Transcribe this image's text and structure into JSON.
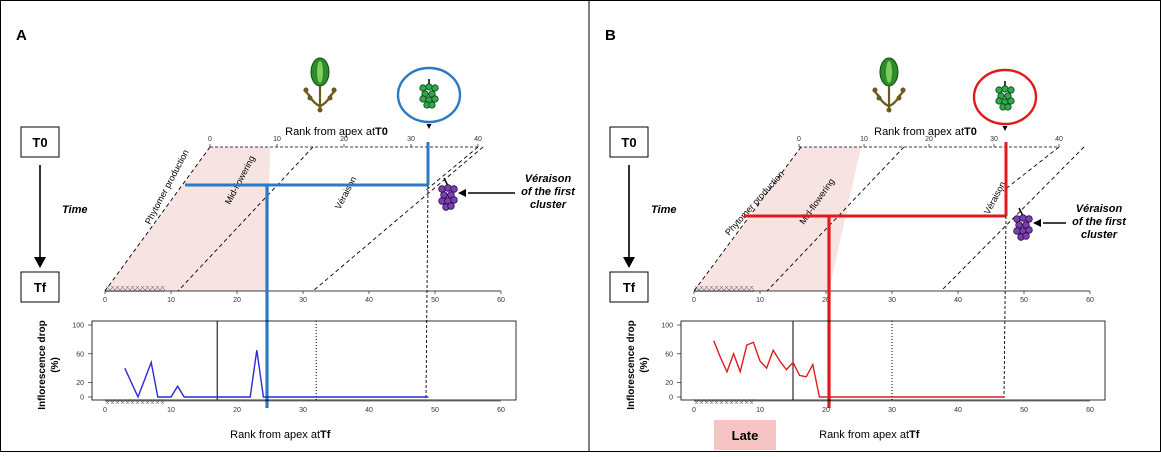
{
  "panels": [
    {
      "label": "A",
      "top_axis_label": "Rank from apex at ",
      "top_axis_label_bold": "T0",
      "bottom_axis_label": "Rank from apex at ",
      "bottom_axis_label_bold": "Tf",
      "top_ticks": [
        "0",
        "10",
        "20",
        "30",
        "40"
      ],
      "bottom_ticks": [
        "0",
        "10",
        "20",
        "30",
        "40",
        "50",
        "60"
      ],
      "plot_ticks_x": [
        "0",
        "10",
        "20",
        "30",
        "40",
        "50",
        "60"
      ],
      "plot_ticks_y": [
        "0",
        "20",
        "60",
        "100"
      ],
      "ylabel_line1": "Inflorescence drop",
      "ylabel_line2": "(%)",
      "phases": [
        "Phytomer production",
        "Mid-flowering",
        "Véraison"
      ],
      "time_start": "T0",
      "time_end": "Tf",
      "time_label": "Time",
      "veraison_note": [
        "Véraison",
        "of the first",
        "cluster"
      ],
      "accent": "#2b7bc4",
      "circle_color": "#2b7bc4",
      "series_color": "#2a2ad6",
      "badge": ""
    },
    {
      "label": "B",
      "top_axis_label": "Rank from apex at ",
      "top_axis_label_bold": "T0",
      "bottom_axis_label": "Rank from apex at ",
      "bottom_axis_label_bold": "Tf",
      "top_ticks": [
        "0",
        "10",
        "20",
        "30",
        "40"
      ],
      "bottom_ticks": [
        "0",
        "10",
        "20",
        "30",
        "40",
        "50",
        "60"
      ],
      "plot_ticks_x": [
        "0",
        "10",
        "20",
        "30",
        "40",
        "50",
        "60"
      ],
      "plot_ticks_y": [
        "0",
        "20",
        "60",
        "100"
      ],
      "ylabel_line1": "Inflorescence drop",
      "ylabel_line2": "(%)",
      "phases": [
        "Phytomer production",
        "Mid-flowering",
        "Véraison"
      ],
      "time_start": "T0",
      "time_end": "Tf",
      "time_label": "Time",
      "veraison_note": [
        "Véraison",
        "of the first",
        "cluster"
      ],
      "accent": "#e01b1b",
      "circle_color": "#e01b1b",
      "series_color": "#e01b1b",
      "badge": "Late"
    }
  ],
  "chart_data": [
    {
      "type": "line",
      "panel": "A",
      "xlim": [
        0,
        60
      ],
      "ylim": [
        0,
        100
      ],
      "x": [
        3,
        5,
        7,
        8,
        10,
        11,
        12,
        17,
        20,
        22,
        23,
        24,
        25,
        30,
        40,
        49
      ],
      "y": [
        40,
        0,
        48,
        0,
        0,
        15,
        0,
        0,
        0,
        0,
        65,
        0,
        0,
        0,
        0,
        0
      ],
      "vlines": [
        {
          "x": 17,
          "style": "solid"
        },
        {
          "x": 32,
          "style": "dotted"
        }
      ]
    },
    {
      "type": "line",
      "panel": "B",
      "xlim": [
        0,
        60
      ],
      "ylim": [
        0,
        100
      ],
      "x": [
        3,
        4,
        5,
        6,
        7,
        8,
        9,
        10,
        11,
        12,
        13,
        14,
        15,
        16,
        17,
        18,
        19,
        20,
        25,
        30,
        40,
        47
      ],
      "y": [
        78,
        55,
        35,
        60,
        35,
        72,
        76,
        50,
        40,
        65,
        50,
        38,
        48,
        30,
        28,
        45,
        0,
        0,
        0,
        0,
        0,
        0
      ],
      "vlines": [
        {
          "x": 15,
          "style": "solid"
        },
        {
          "x": 30,
          "style": "dotted"
        }
      ]
    }
  ]
}
